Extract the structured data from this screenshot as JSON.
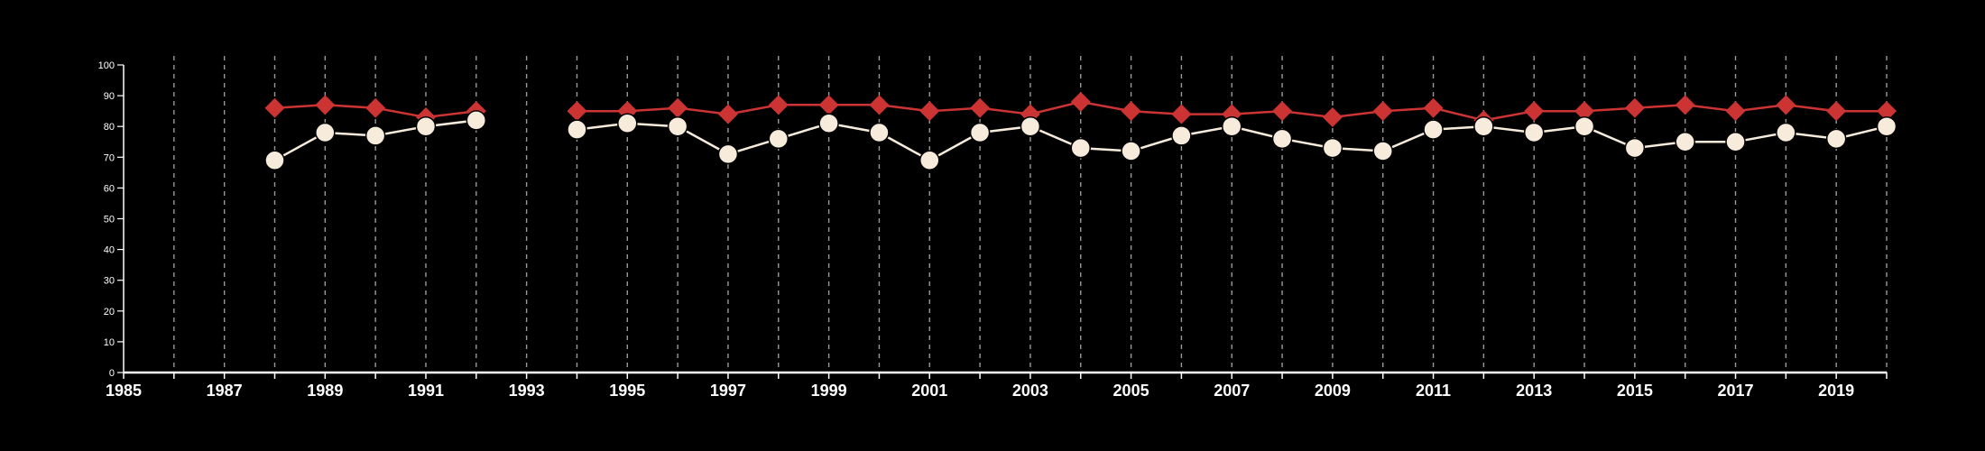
{
  "chart_data": {
    "type": "line",
    "title": "",
    "xlabel": "",
    "ylabel": "",
    "xlim": [
      1985,
      2020
    ],
    "ylim": [
      0,
      100
    ],
    "x_ticks": [
      1985,
      1987,
      1989,
      1991,
      1993,
      1995,
      1997,
      1999,
      2001,
      2003,
      2005,
      2007,
      2009,
      2011,
      2013,
      2015,
      2017,
      2019
    ],
    "y_ticks": [
      0,
      10,
      20,
      30,
      40,
      50,
      60,
      70,
      80,
      90,
      100
    ],
    "vertical_grid": "dashed",
    "background_color": "#000000",
    "axis_color": "#ffffff",
    "series": [
      {
        "marker": "diamond",
        "color": "#cc3333",
        "x": [
          1988,
          1989,
          1990,
          1991,
          1992,
          1994,
          1995,
          1996,
          1997,
          1998,
          1999,
          2000,
          2001,
          2002,
          2003,
          2004,
          2005,
          2006,
          2007,
          2008,
          2009,
          2010,
          2011,
          2012,
          2013,
          2014,
          2015,
          2016,
          2017,
          2018,
          2019,
          2020
        ],
        "values": [
          86,
          87,
          86,
          83,
          85,
          85,
          85,
          86,
          84,
          87,
          87,
          87,
          85,
          86,
          84,
          88,
          85,
          84,
          84,
          85,
          83,
          85,
          86,
          82,
          85,
          85,
          86,
          87,
          85,
          87,
          85,
          85
        ]
      },
      {
        "marker": "circle",
        "color": "#f7ecdc",
        "x": [
          1988,
          1989,
          1990,
          1991,
          1992,
          1994,
          1995,
          1996,
          1997,
          1998,
          1999,
          2000,
          2001,
          2002,
          2003,
          2004,
          2005,
          2006,
          2007,
          2008,
          2009,
          2010,
          2011,
          2012,
          2013,
          2014,
          2015,
          2016,
          2017,
          2018,
          2019,
          2020
        ],
        "values": [
          69,
          78,
          77,
          80,
          82,
          79,
          81,
          80,
          71,
          76,
          81,
          78,
          69,
          78,
          80,
          73,
          72,
          77,
          80,
          76,
          73,
          72,
          79,
          80,
          78,
          80,
          73,
          75,
          75,
          78,
          76,
          80
        ]
      }
    ]
  }
}
